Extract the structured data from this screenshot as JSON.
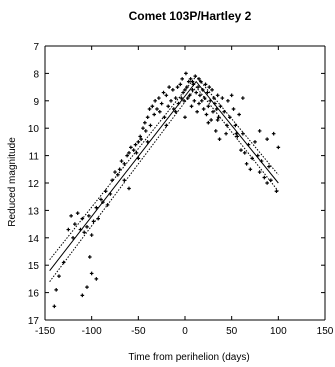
{
  "chart_data": {
    "type": "scatter",
    "title": "Comet 103P/Hartley 2",
    "xlabel": "Time from perihelion (days)",
    "ylabel": "Reduced magnitude",
    "xlim": [
      -150,
      150
    ],
    "ylim": [
      17,
      7
    ],
    "y_inverted": true,
    "x_ticks": [
      -150,
      -100,
      -50,
      0,
      50,
      100,
      150
    ],
    "y_ticks": [
      7,
      8,
      9,
      10,
      11,
      12,
      13,
      14,
      15,
      16,
      17
    ],
    "grid": false,
    "legend": "none",
    "colors": {
      "points": "#000000",
      "lines": "#000000"
    },
    "series": [
      {
        "kind": "points",
        "x": [
          -140,
          -138,
          -135,
          -130,
          -125,
          -122,
          -120,
          -118,
          -115,
          -112,
          -110,
          -108,
          -105,
          -103,
          -100,
          -98,
          -95,
          -93,
          -90,
          -88,
          -85,
          -83,
          -80,
          -78,
          -75,
          -72,
          -70,
          -68,
          -65,
          -62,
          -60,
          -58,
          -55,
          -53,
          -52,
          -50,
          -48,
          -47,
          -45,
          -43,
          -42,
          -40,
          -38,
          -37,
          -35,
          -33,
          -32,
          -30,
          -28,
          -27,
          -25,
          -23,
          -22,
          -20,
          -18,
          -17,
          -15,
          -13,
          -12,
          -10,
          -8,
          -7,
          -5,
          -4,
          -3,
          -2,
          -1,
          0,
          1,
          2,
          3,
          4,
          5,
          6,
          7,
          8,
          9,
          10,
          11,
          12,
          13,
          14,
          15,
          16,
          17,
          18,
          19,
          20,
          21,
          22,
          23,
          24,
          25,
          26,
          27,
          28,
          29,
          30,
          31,
          32,
          33,
          34,
          35,
          36,
          37,
          38,
          40,
          42,
          44,
          46,
          48,
          50,
          52,
          54,
          56,
          58,
          60,
          62,
          64,
          66,
          68,
          70,
          72,
          75,
          78,
          80,
          82,
          85,
          88,
          90,
          92,
          95,
          98,
          100,
          -95,
          -105,
          -100,
          -110,
          -102,
          -65,
          -60,
          -50,
          -40,
          -20,
          -10,
          0,
          8,
          15,
          25,
          35,
          45,
          55,
          62,
          80,
          88
        ],
        "y": [
          16.5,
          15.9,
          15.4,
          14.9,
          13.7,
          13.2,
          14.0,
          13.5,
          13.1,
          13.7,
          13.3,
          13.8,
          13.6,
          13.2,
          13.9,
          13.4,
          12.9,
          13.3,
          12.6,
          12.7,
          12.3,
          12.8,
          12.4,
          11.9,
          11.6,
          11.7,
          11.5,
          11.2,
          11.3,
          11.0,
          10.9,
          10.7,
          10.8,
          10.6,
          10.9,
          10.5,
          10.3,
          10.4,
          10.0,
          9.8,
          10.1,
          9.6,
          9.3,
          9.9,
          9.2,
          9.5,
          9.0,
          9.3,
          8.9,
          9.4,
          9.1,
          8.7,
          9.6,
          8.8,
          9.2,
          8.5,
          9.0,
          8.6,
          9.3,
          8.9,
          8.5,
          9.1,
          8.4,
          8.9,
          8.2,
          8.7,
          9.0,
          8.6,
          8.0,
          8.5,
          8.9,
          8.3,
          8.8,
          8.2,
          9.2,
          8.6,
          8.4,
          9.0,
          8.1,
          8.7,
          9.4,
          8.5,
          9.1,
          8.8,
          8.3,
          9.0,
          8.6,
          9.3,
          8.9,
          8.4,
          9.5,
          8.7,
          9.2,
          8.5,
          9.0,
          9.7,
          8.6,
          9.4,
          8.9,
          9.1,
          10.1,
          9.3,
          8.8,
          9.6,
          10.4,
          9.2,
          8.9,
          9.4,
          10.2,
          9.0,
          9.6,
          8.8,
          9.3,
          9.9,
          10.3,
          9.5,
          10.8,
          10.2,
          10.9,
          11.3,
          10.6,
          11.5,
          11.1,
          10.5,
          11.0,
          11.6,
          11.2,
          11.8,
          12.0,
          11.4,
          11.9,
          10.2,
          12.3,
          10.7,
          15.5,
          15.8,
          15.3,
          16.1,
          14.7,
          11.9,
          12.2,
          11.1,
          10.5,
          9.9,
          9.4,
          9.6,
          8.3,
          8.2,
          9.8,
          9.7,
          9.9,
          10.2,
          8.9,
          10.1,
          10.4
        ]
      },
      {
        "kind": "line",
        "style": "solid",
        "x": [
          -145,
          12,
          100
        ],
        "y": [
          15.2,
          8.3,
          12.0
        ]
      },
      {
        "kind": "line",
        "style": "dotted",
        "x": [
          -145,
          12,
          100
        ],
        "y": [
          14.8,
          8.1,
          11.7
        ]
      },
      {
        "kind": "line",
        "style": "dotted",
        "x": [
          -145,
          12,
          100
        ],
        "y": [
          15.6,
          8.5,
          12.3
        ]
      }
    ]
  }
}
